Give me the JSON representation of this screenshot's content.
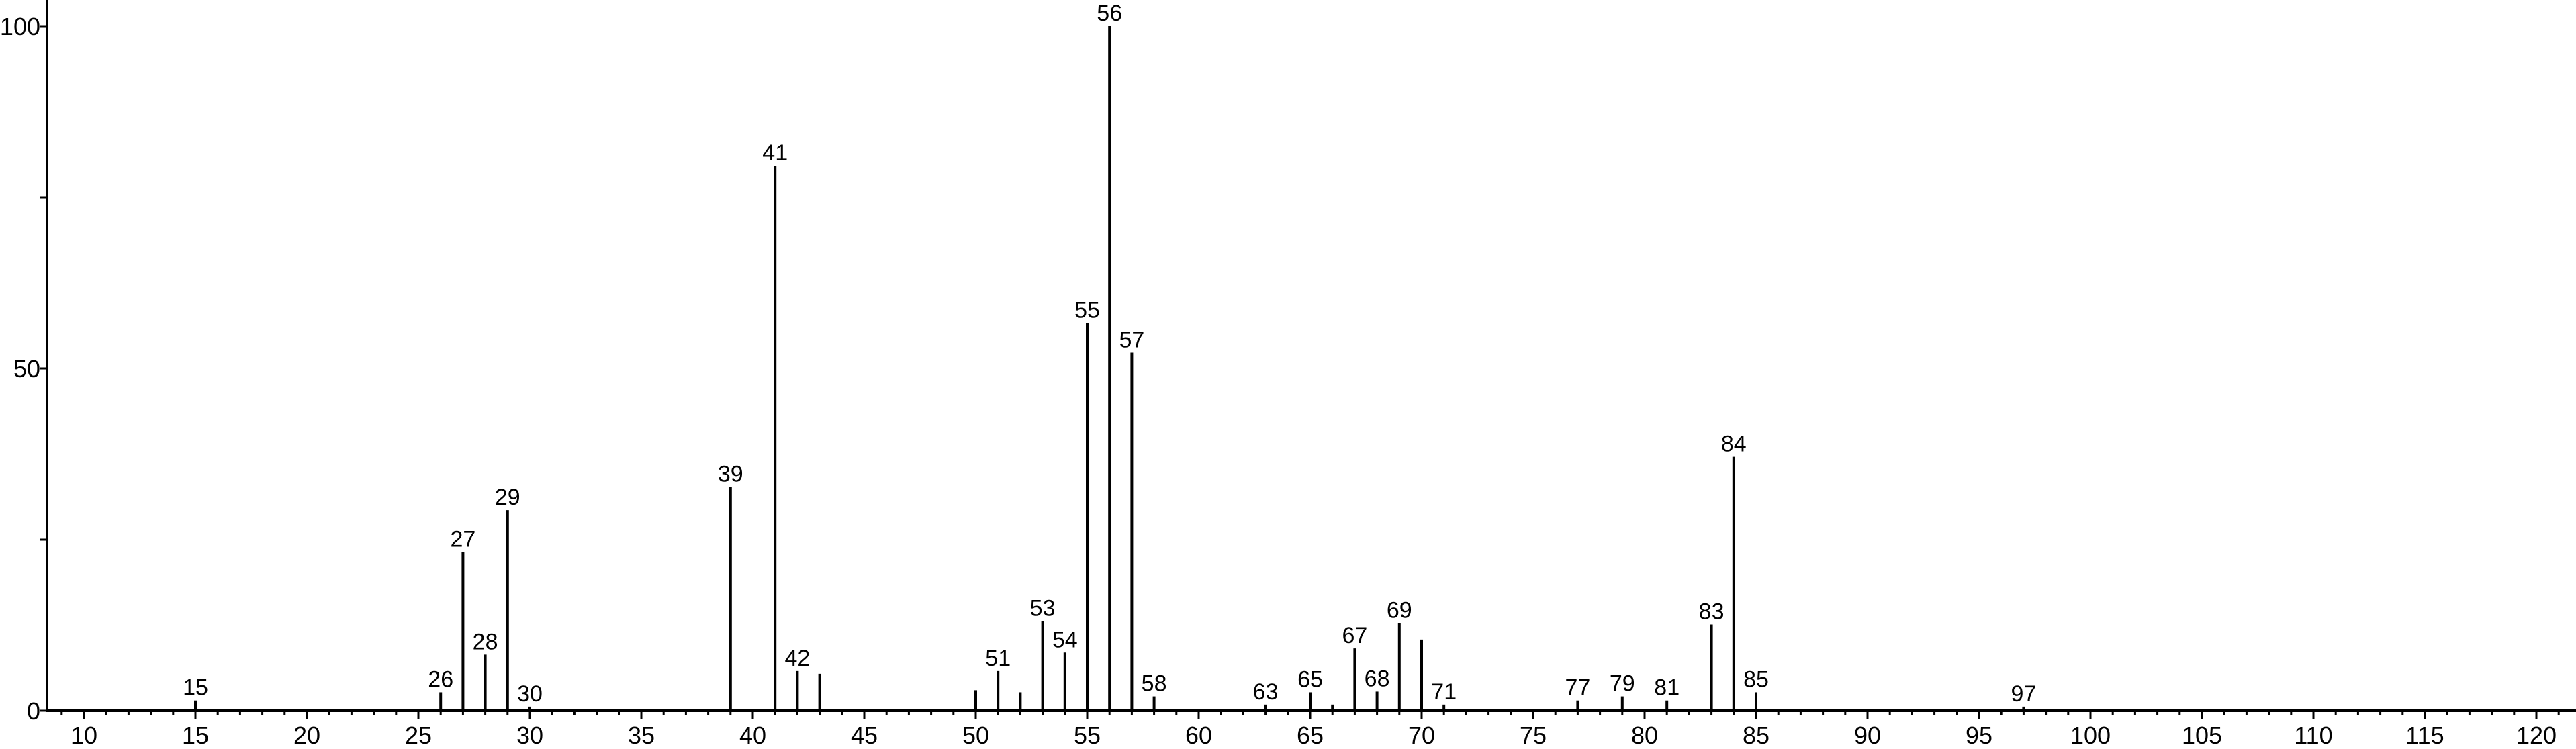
{
  "chart_data": {
    "type": "bar",
    "title": "",
    "xlabel": "",
    "ylabel": "",
    "xlim": [
      8.3,
      121.6
    ],
    "ylim": [
      0,
      100
    ],
    "grid": false,
    "x_ticks": [
      10,
      15,
      20,
      25,
      30,
      35,
      40,
      45,
      50,
      55,
      60,
      65,
      70,
      75,
      80,
      85,
      90,
      95,
      100,
      105,
      110,
      115,
      120
    ],
    "x_minor_step": 1,
    "y_ticks": [
      0,
      25,
      50,
      75,
      100
    ],
    "y_tick_labels": [
      "0",
      "",
      "50",
      "",
      "100"
    ],
    "color": "#000000",
    "peaks": [
      {
        "mz": 15,
        "intensity": 1.5,
        "label": "15"
      },
      {
        "mz": 26,
        "intensity": 2.7,
        "label": "26"
      },
      {
        "mz": 27,
        "intensity": 23.2,
        "label": "27"
      },
      {
        "mz": 28,
        "intensity": 8.2,
        "label": "28"
      },
      {
        "mz": 29,
        "intensity": 29.3,
        "label": "29"
      },
      {
        "mz": 30,
        "intensity": 0.6,
        "label": "30"
      },
      {
        "mz": 39,
        "intensity": 32.7,
        "label": "39"
      },
      {
        "mz": 41,
        "intensity": 79.6,
        "label": "41"
      },
      {
        "mz": 42,
        "intensity": 5.8,
        "label": "42"
      },
      {
        "mz": 43,
        "intensity": 5.4,
        "label": ""
      },
      {
        "mz": 50,
        "intensity": 3.0,
        "label": ""
      },
      {
        "mz": 51,
        "intensity": 5.8,
        "label": "51"
      },
      {
        "mz": 52,
        "intensity": 2.7,
        "label": ""
      },
      {
        "mz": 53,
        "intensity": 13.1,
        "label": "53"
      },
      {
        "mz": 54,
        "intensity": 8.5,
        "label": "54"
      },
      {
        "mz": 55,
        "intensity": 56.6,
        "label": "55"
      },
      {
        "mz": 56,
        "intensity": 100,
        "label": "56"
      },
      {
        "mz": 57,
        "intensity": 52.3,
        "label": "57"
      },
      {
        "mz": 58,
        "intensity": 2.1,
        "label": "58"
      },
      {
        "mz": 63,
        "intensity": 0.9,
        "label": "63"
      },
      {
        "mz": 65,
        "intensity": 2.7,
        "label": "65"
      },
      {
        "mz": 66,
        "intensity": 0.9,
        "label": ""
      },
      {
        "mz": 67,
        "intensity": 9.1,
        "label": "67"
      },
      {
        "mz": 68,
        "intensity": 2.8,
        "label": "68"
      },
      {
        "mz": 69,
        "intensity": 12.8,
        "label": "69"
      },
      {
        "mz": 70,
        "intensity": 10.4,
        "label": ""
      },
      {
        "mz": 71,
        "intensity": 0.9,
        "label": "71"
      },
      {
        "mz": 77,
        "intensity": 1.5,
        "label": "77"
      },
      {
        "mz": 79,
        "intensity": 2.1,
        "label": "79"
      },
      {
        "mz": 81,
        "intensity": 1.5,
        "label": "81"
      },
      {
        "mz": 83,
        "intensity": 12.6,
        "label": "83"
      },
      {
        "mz": 84,
        "intensity": 37.1,
        "label": "84"
      },
      {
        "mz": 85,
        "intensity": 2.7,
        "label": "85"
      },
      {
        "mz": 97,
        "intensity": 0.6,
        "label": "97"
      }
    ]
  }
}
